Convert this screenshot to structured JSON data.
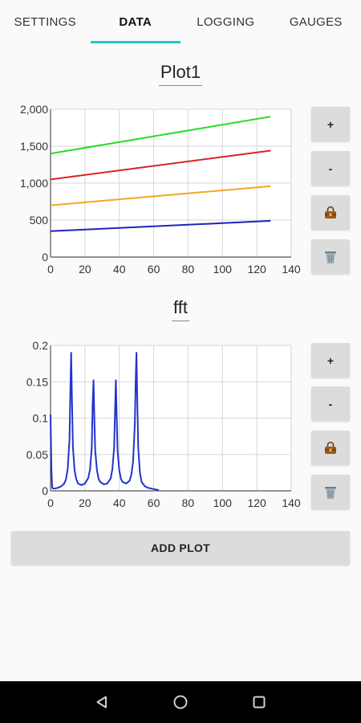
{
  "tabs": [
    {
      "label": "SETTINGS",
      "active": false
    },
    {
      "label": "DATA",
      "active": true
    },
    {
      "label": "LOGGING",
      "active": false
    },
    {
      "label": "GAUGES",
      "active": false
    }
  ],
  "accent_color": "#26c6c6",
  "plots": [
    {
      "title": "Plot1",
      "buttons": {
        "zoom_in": "+",
        "zoom_out": "-",
        "save_icon": "bag-icon",
        "delete_icon": "trash-icon"
      }
    },
    {
      "title": "fft",
      "buttons": {
        "zoom_in": "+",
        "zoom_out": "-",
        "save_icon": "bag-icon",
        "delete_icon": "trash-icon"
      }
    }
  ],
  "add_plot_label": "ADD PLOT",
  "chart_data": [
    {
      "type": "line",
      "title": "Plot1",
      "xlim": [
        0,
        140
      ],
      "ylim": [
        0,
        2000
      ],
      "x_ticks": [
        "0",
        "20",
        "40",
        "60",
        "80",
        "100",
        "120",
        "140"
      ],
      "y_ticks": [
        "0",
        "500",
        "1,000",
        "1,500",
        "2,000"
      ],
      "grid": true,
      "series": [
        {
          "color": "#22dd22",
          "x": [
            0,
            128
          ],
          "values": [
            1400,
            1900
          ]
        },
        {
          "color": "#dd2222",
          "x": [
            0,
            128
          ],
          "values": [
            1050,
            1440
          ]
        },
        {
          "color": "#f5a623",
          "x": [
            0,
            128
          ],
          "values": [
            700,
            960
          ]
        },
        {
          "color": "#2222bb",
          "x": [
            0,
            128
          ],
          "values": [
            350,
            490
          ]
        }
      ]
    },
    {
      "type": "line",
      "title": "fft",
      "xlim": [
        0,
        140
      ],
      "ylim": [
        0,
        0.2
      ],
      "x_ticks": [
        "0",
        "20",
        "40",
        "60",
        "80",
        "100",
        "120",
        "140"
      ],
      "y_ticks": [
        "0",
        "0.05",
        "0.1",
        "0.15",
        "0.2"
      ],
      "grid": true,
      "series": [
        {
          "color": "#2233cc",
          "x": [
            0,
            0.5,
            1,
            2,
            4,
            6,
            8,
            9,
            10,
            11,
            11.5,
            12,
            12.5,
            13,
            14,
            15,
            16,
            18,
            20,
            22,
            23,
            24,
            24.5,
            25,
            25.5,
            26,
            27,
            28,
            29,
            31,
            33,
            35,
            36,
            37,
            37.5,
            38,
            38.5,
            39,
            40,
            41,
            42,
            44,
            46,
            47,
            48,
            49,
            49.5,
            50,
            50.5,
            51,
            52,
            53,
            55,
            57,
            59,
            61,
            63
          ],
          "values": [
            0.105,
            0.03,
            0.004,
            0.003,
            0.004,
            0.006,
            0.01,
            0.016,
            0.03,
            0.07,
            0.13,
            0.19,
            0.12,
            0.06,
            0.028,
            0.016,
            0.01,
            0.008,
            0.01,
            0.018,
            0.03,
            0.06,
            0.12,
            0.152,
            0.1,
            0.055,
            0.028,
            0.016,
            0.012,
            0.009,
            0.01,
            0.017,
            0.03,
            0.06,
            0.11,
            0.152,
            0.1,
            0.055,
            0.028,
            0.016,
            0.012,
            0.01,
            0.014,
            0.022,
            0.04,
            0.09,
            0.15,
            0.19,
            0.12,
            0.06,
            0.025,
            0.012,
            0.006,
            0.004,
            0.003,
            0.002,
            0.001
          ]
        }
      ]
    }
  ]
}
